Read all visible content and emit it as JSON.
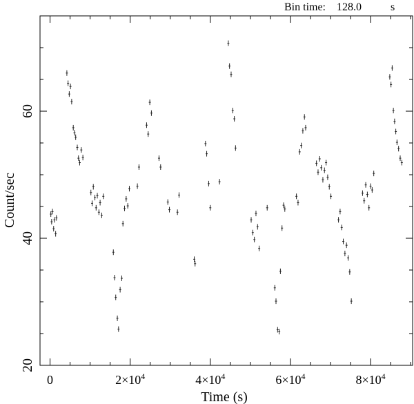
{
  "header": {
    "bin_label": "Bin time:",
    "bin_value": "128.0",
    "bin_unit": "s"
  },
  "chart_data": {
    "type": "scatter",
    "title": "",
    "xlabel": "Time (s)",
    "ylabel": "Count/sec",
    "xlim": [
      -2500,
      90500
    ],
    "ylim": [
      20,
      75
    ],
    "x_ticks": [
      {
        "value": 0,
        "label": "0",
        "exp": ""
      },
      {
        "value": 20000,
        "label": "2×10",
        "exp": "4"
      },
      {
        "value": 40000,
        "label": "4×10",
        "exp": "4"
      },
      {
        "value": 60000,
        "label": "6×10",
        "exp": "4"
      },
      {
        "value": 80000,
        "label": "8×10",
        "exp": "4"
      }
    ],
    "y_ticks": [
      {
        "value": 20,
        "label": "20"
      },
      {
        "value": 40,
        "label": "40"
      },
      {
        "value": 60,
        "label": "60"
      }
    ],
    "grid": false,
    "series": [
      {
        "points": [
          [
            200,
            43.8
          ],
          [
            400,
            42.6
          ],
          [
            600,
            44.2
          ],
          [
            900,
            41.5
          ],
          [
            1100,
            42.9
          ],
          [
            1400,
            40.7
          ],
          [
            1600,
            43.2
          ],
          [
            4200,
            66.0
          ],
          [
            4500,
            64.4
          ],
          [
            4800,
            62.7
          ],
          [
            5100,
            63.9
          ],
          [
            5400,
            61.5
          ],
          [
            5800,
            57.4
          ],
          [
            6100,
            56.6
          ],
          [
            6400,
            55.9
          ],
          [
            6800,
            54.3
          ],
          [
            7100,
            52.6
          ],
          [
            7400,
            51.9
          ],
          [
            7800,
            53.9
          ],
          [
            8200,
            52.7
          ],
          [
            10200,
            47.2
          ],
          [
            10500,
            45.5
          ],
          [
            10800,
            48.1
          ],
          [
            11200,
            46.4
          ],
          [
            11500,
            44.8
          ],
          [
            11800,
            46.7
          ],
          [
            12200,
            44.1
          ],
          [
            12500,
            45.6
          ],
          [
            12900,
            43.6
          ],
          [
            13300,
            46.6
          ],
          [
            15800,
            37.8
          ],
          [
            16100,
            33.8
          ],
          [
            16400,
            30.7
          ],
          [
            16800,
            27.4
          ],
          [
            17100,
            25.7
          ],
          [
            17500,
            31.9
          ],
          [
            17900,
            33.7
          ],
          [
            18200,
            42.3
          ],
          [
            18600,
            44.7
          ],
          [
            19000,
            46.2
          ],
          [
            19400,
            45.1
          ],
          [
            19800,
            47.8
          ],
          [
            21800,
            48.2
          ],
          [
            22200,
            51.2
          ],
          [
            24100,
            57.8
          ],
          [
            24500,
            56.4
          ],
          [
            24900,
            61.4
          ],
          [
            25300,
            59.7
          ],
          [
            27200,
            52.6
          ],
          [
            27600,
            51.2
          ],
          [
            29400,
            45.7
          ],
          [
            29800,
            44.5
          ],
          [
            31800,
            44.1
          ],
          [
            32200,
            46.8
          ],
          [
            36000,
            36.7
          ],
          [
            36200,
            36.0
          ],
          [
            38800,
            54.9
          ],
          [
            39100,
            53.3
          ],
          [
            39600,
            48.6
          ],
          [
            40000,
            44.8
          ],
          [
            42300,
            48.9
          ],
          [
            44500,
            70.7
          ],
          [
            44800,
            67.1
          ],
          [
            45200,
            65.8
          ],
          [
            45600,
            60.1
          ],
          [
            46000,
            58.8
          ],
          [
            46300,
            54.2
          ],
          [
            50200,
            42.9
          ],
          [
            50600,
            40.9
          ],
          [
            51000,
            39.8
          ],
          [
            51400,
            43.9
          ],
          [
            51800,
            41.8
          ],
          [
            52200,
            38.4
          ],
          [
            54200,
            44.8
          ],
          [
            56100,
            32.2
          ],
          [
            56400,
            30.1
          ],
          [
            56800,
            25.6
          ],
          [
            57200,
            25.3
          ],
          [
            57500,
            34.8
          ],
          [
            57900,
            41.6
          ],
          [
            58300,
            45.2
          ],
          [
            58600,
            44.6
          ],
          [
            61500,
            46.6
          ],
          [
            61900,
            45.6
          ],
          [
            62300,
            53.6
          ],
          [
            62700,
            54.6
          ],
          [
            63100,
            56.9
          ],
          [
            63500,
            59.1
          ],
          [
            63800,
            57.4
          ],
          [
            66500,
            51.8
          ],
          [
            66900,
            50.4
          ],
          [
            67300,
            52.5
          ],
          [
            67700,
            51.1
          ],
          [
            68100,
            49.2
          ],
          [
            68500,
            50.7
          ],
          [
            68900,
            51.9
          ],
          [
            69300,
            49.6
          ],
          [
            69700,
            48.1
          ],
          [
            70100,
            46.6
          ],
          [
            72000,
            42.9
          ],
          [
            72400,
            44.2
          ],
          [
            72800,
            41.7
          ],
          [
            73200,
            39.5
          ],
          [
            73600,
            37.6
          ],
          [
            74000,
            38.9
          ],
          [
            74400,
            36.9
          ],
          [
            74800,
            34.7
          ],
          [
            75200,
            30.1
          ],
          [
            78000,
            47.1
          ],
          [
            78400,
            45.9
          ],
          [
            78800,
            48.4
          ],
          [
            79200,
            46.9
          ],
          [
            79600,
            44.8
          ],
          [
            80000,
            48.2
          ],
          [
            80400,
            47.6
          ],
          [
            80800,
            50.2
          ],
          [
            84800,
            65.4
          ],
          [
            85100,
            64.2
          ],
          [
            85400,
            66.8
          ],
          [
            85700,
            60.1
          ],
          [
            86000,
            58.4
          ],
          [
            86300,
            56.8
          ],
          [
            86600,
            55.1
          ],
          [
            87000,
            54.1
          ],
          [
            87400,
            52.6
          ],
          [
            87800,
            51.9
          ]
        ]
      }
    ]
  }
}
